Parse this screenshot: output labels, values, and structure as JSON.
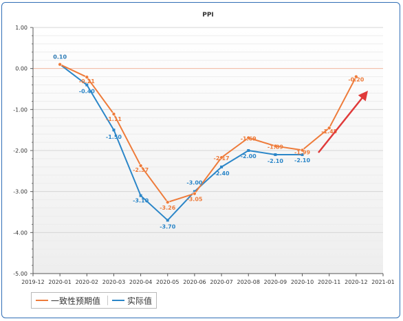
{
  "chart_data": {
    "type": "line",
    "title": "PPI",
    "x": [
      "2020-01",
      "2020-02",
      "2020-03",
      "2020-04",
      "2020-05",
      "2020-06",
      "2020-07",
      "2020-08",
      "2020-09",
      "2020-10",
      "2020-11",
      "2020-12"
    ],
    "x_ticks": [
      "2019-12",
      "2020-01",
      "2020-02",
      "2020-03",
      "2020-04",
      "2020-05",
      "2020-06",
      "2020-07",
      "2020-08",
      "2020-09",
      "2020-10",
      "2020-11",
      "2020-12",
      "2021-01"
    ],
    "y_ticks": [
      "1.00",
      "0.00",
      "-1.00",
      "-2.00",
      "-3.00",
      "-4.00",
      "-5.00"
    ],
    "ylim": [
      -5,
      1
    ],
    "grid": true,
    "legend": "bottom-left",
    "series": [
      {
        "name": "一致性预期值",
        "color": "#ee7b3a",
        "values": [
          0.1,
          -0.21,
          -1.11,
          -2.37,
          -3.26,
          -3.05,
          -2.17,
          -1.69,
          -1.89,
          -1.99,
          -1.45,
          -0.2
        ],
        "labels": [
          "0.10",
          "-0.21",
          "-1.11",
          "-2.37",
          "-3.26",
          "-3.05",
          "-2.17",
          "-1.69",
          "-1.89",
          "-1.99",
          "-1.45",
          "-0.20"
        ]
      },
      {
        "name": "实际值",
        "color": "#2b86c8",
        "values": [
          0.1,
          -0.4,
          -1.5,
          -3.1,
          -3.7,
          -3.0,
          -2.4,
          -2.0,
          -2.1,
          -2.1,
          null,
          null
        ],
        "labels": [
          "0.10",
          "-0.40",
          "-1.50",
          "-3.10",
          "-3.70",
          "-3.00",
          "-2.40",
          "-2.00",
          "-2.10",
          "-2.10",
          "",
          ""
        ]
      }
    ],
    "annotation_arrow_color": "#e03a3a",
    "zero_line_color": "#f2b8a0"
  }
}
